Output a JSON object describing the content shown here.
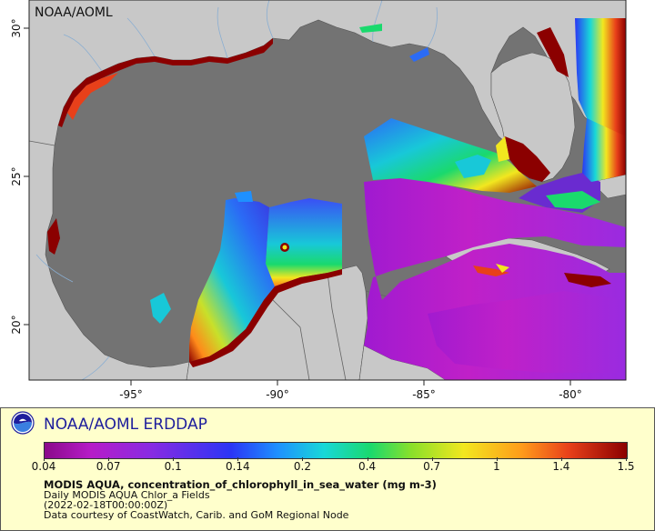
{
  "map": {
    "corner_label": "NOAA/AOML",
    "lon_ticks": [
      {
        "label": "-95°",
        "lon": -95
      },
      {
        "label": "-90°",
        "lon": -90
      },
      {
        "label": "-85°",
        "lon": -85
      },
      {
        "label": "-80°",
        "lon": -80
      }
    ],
    "lat_ticks": [
      {
        "label": "30°",
        "lat": 30
      },
      {
        "label": "25°",
        "lat": 25
      },
      {
        "label": "20°",
        "lat": 20
      }
    ],
    "colors": {
      "ocean_no_data": "#737373",
      "land": "#c8c8c8",
      "rivers": "#8aaed2",
      "borders": "#646464"
    }
  },
  "footer": {
    "brand": "NOAA/AOML ERDDAP",
    "colorbar_ticks": [
      "0.04",
      "0.07",
      "0.1",
      "0.14",
      "0.2",
      "0.4",
      "0.7",
      "1",
      "1.4",
      "1.5"
    ],
    "title": "MODIS AQUA, concentration_of_chlorophyll_in_sea_water (mg m-3)",
    "subtitle": "Daily MODIS AQUA Chlor_a Fields",
    "time": "(2022-02-18T00:00:00Z)",
    "credit": "Data courtesy of CoastWatch, Carib. and GoM Regional Node"
  }
}
